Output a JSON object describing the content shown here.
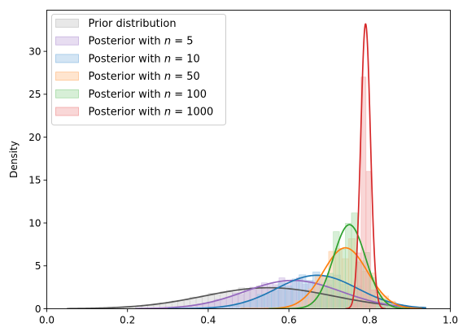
{
  "chart_data": {
    "type": "area",
    "xlabel": "",
    "ylabel": "Density",
    "xlim": [
      0.0,
      1.0
    ],
    "ylim": [
      0,
      34.8
    ],
    "x_ticks": [
      "0.0",
      "0.2",
      "0.4",
      "0.6",
      "0.8",
      "1.0"
    ],
    "x_tick_values": [
      0.0,
      0.2,
      0.4,
      0.6,
      0.8,
      1.0
    ],
    "y_ticks": [
      "0",
      "5",
      "10",
      "15",
      "20",
      "25",
      "30"
    ],
    "y_tick_values": [
      0,
      5,
      10,
      15,
      20,
      25,
      30
    ],
    "grid": false,
    "legend_position": "top-left",
    "series": [
      {
        "name": "Prior distribution",
        "label_prefix": "Prior distribution",
        "label_n": "",
        "color": "#555555",
        "fill": "#cccccc",
        "mean": 0.55,
        "sd": 0.16,
        "peak": 2.45,
        "xmin": 0.05,
        "xmax": 0.94,
        "hist_x0": 0.1,
        "hist_x1": 0.94,
        "bins": 56,
        "hist_noise": 0.3
      },
      {
        "name": "Posterior with n = 5",
        "label_prefix": "Posterior with ",
        "label_n": "n = 5",
        "color": "#9467bd",
        "fill": "#c9b3e0",
        "mean": 0.61,
        "sd": 0.12,
        "peak": 3.3,
        "xmin": 0.22,
        "xmax": 0.93,
        "hist_x0": 0.3,
        "hist_x1": 0.88,
        "bins": 40,
        "hist_noise": 0.35
      },
      {
        "name": "Posterior with n = 10",
        "label_prefix": "Posterior with ",
        "label_n": "n = 10",
        "color": "#1f77b4",
        "fill": "#9ec5e6",
        "mean": 0.67,
        "sd": 0.1,
        "peak": 3.9,
        "xmin": 0.3,
        "xmax": 0.94,
        "hist_x0": 0.35,
        "hist_x1": 0.9,
        "bins": 32,
        "hist_noise": 0.4
      },
      {
        "name": "Posterior with n = 50",
        "label_prefix": "Posterior with ",
        "label_n": "n = 50",
        "color": "#ff7f0e",
        "fill": "#ffc595",
        "mean": 0.74,
        "sd": 0.055,
        "peak": 7.1,
        "xmin": 0.48,
        "xmax": 0.93,
        "hist_x0": 0.55,
        "hist_x1": 0.88,
        "bins": 20,
        "hist_noise": 0.6
      },
      {
        "name": "Posterior with n = 100",
        "label_prefix": "Posterior with ",
        "label_n": "n = 100",
        "color": "#2ca02c",
        "fill": "#a6dba6",
        "mean": 0.75,
        "sd": 0.04,
        "peak": 9.8,
        "xmin": 0.55,
        "xmax": 0.9,
        "hist_x0": 0.62,
        "hist_x1": 0.86,
        "bins": 16,
        "hist_noise": 0.8
      },
      {
        "name": "Posterior with n = 1000",
        "label_prefix": "Posterior with ",
        "label_n": "n = 1000",
        "color": "#d62728",
        "fill": "#f2a6a6",
        "mean": 0.79,
        "sd": 0.012,
        "peak": 33.2,
        "xmin": 0.74,
        "xmax": 0.84,
        "hist_x0": 0.755,
        "hist_x1": 0.815,
        "bins": 5,
        "hist_noise": 0
      }
    ],
    "histogram_n1000": [
      {
        "x0": 0.755,
        "x1": 0.767,
        "value": 0.6
      },
      {
        "x0": 0.767,
        "x1": 0.779,
        "value": 6.5
      },
      {
        "x0": 0.779,
        "x1": 0.791,
        "value": 27
      },
      {
        "x0": 0.791,
        "x1": 0.803,
        "value": 16
      },
      {
        "x0": 0.803,
        "x1": 0.815,
        "value": 2.2
      }
    ]
  }
}
